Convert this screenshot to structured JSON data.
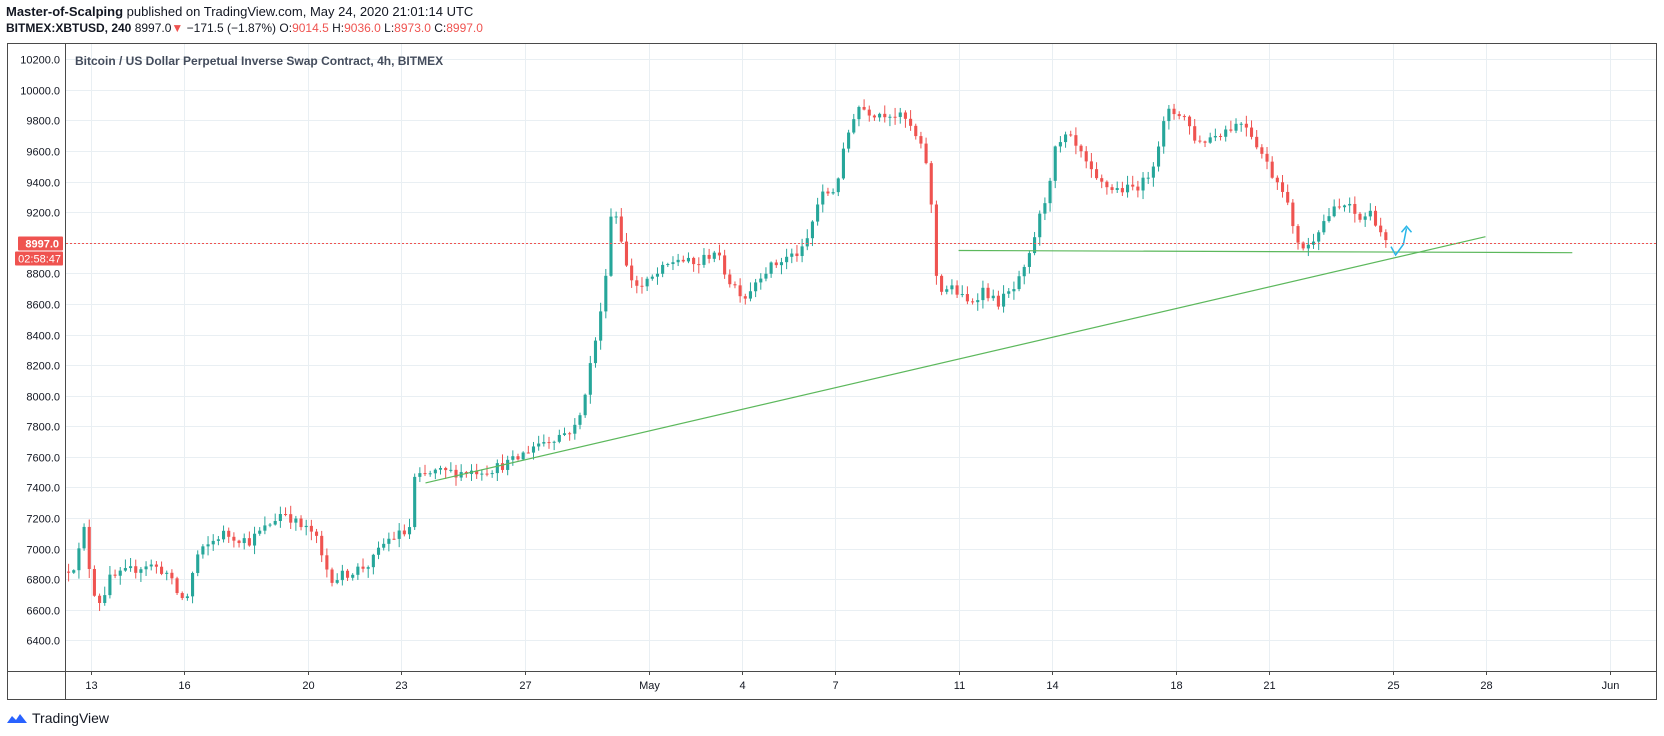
{
  "header": {
    "author": "Master-of-Scalping",
    "published_text": "published on TradingView.com, May 24, 2020 21:01:14 UTC",
    "symbol": "BITMEX:XBTUSD, 240",
    "last": "8997.0",
    "change": "−171.5 (−1.87%)",
    "open_label": "O:",
    "open": "9014.5",
    "high_label": "H:",
    "high": "9036.0",
    "low_label": "L:",
    "low": "8973.0",
    "close_label": "C:",
    "close": "8997.0"
  },
  "footer": {
    "brand": "TradingView"
  },
  "colors": {
    "up": "#26a69a",
    "down": "#ef5350",
    "trend": "#5cb85c",
    "projection": "#29b6e8",
    "grid": "#e9eff3",
    "axis": "#4a4a4a"
  },
  "chart_data": {
    "type": "candlestick",
    "title": "Bitcoin / US Dollar Perpetual Inverse Swap Contract, 4h, BITMEX",
    "timeframe": "4h",
    "ylim": [
      6200,
      10300
    ],
    "y_ticks": [
      "6400.0",
      "6600.0",
      "6800.0",
      "7000.0",
      "7200.0",
      "7400.0",
      "7600.0",
      "7800.0",
      "8000.0",
      "8200.0",
      "8400.0",
      "8600.0",
      "8800.0",
      "9000.0",
      "9200.0",
      "9400.0",
      "9600.0",
      "9800.0",
      "10000.0",
      "10200.0"
    ],
    "y_tick_values": [
      6400,
      6600,
      6800,
      7000,
      7200,
      7400,
      7600,
      7800,
      8000,
      8200,
      8400,
      8600,
      8800,
      9000,
      9200,
      9400,
      9600,
      9800,
      10000,
      10200
    ],
    "x_ticks": [
      {
        "label": "13",
        "day": 13
      },
      {
        "label": "16",
        "day": 16
      },
      {
        "label": "20",
        "day": 20
      },
      {
        "label": "23",
        "day": 23
      },
      {
        "label": "27",
        "day": 27
      },
      {
        "label": "May",
        "day": 31
      },
      {
        "label": "4",
        "day": 34
      },
      {
        "label": "7",
        "day": 37
      },
      {
        "label": "11",
        "day": 41
      },
      {
        "label": "14",
        "day": 44
      },
      {
        "label": "18",
        "day": 48
      },
      {
        "label": "21",
        "day": 51
      },
      {
        "label": "25",
        "day": 55
      },
      {
        "label": "28",
        "day": 58
      },
      {
        "label": "Jun",
        "day": 62
      }
    ],
    "x_range_days": [
      12.2,
      63.5
    ],
    "price_keypoints": [
      [
        12.2,
        6850
      ],
      [
        12.6,
        6900
      ],
      [
        12.9,
        7150
      ],
      [
        13.1,
        6750
      ],
      [
        13.4,
        6650
      ],
      [
        13.7,
        6800
      ],
      [
        14.3,
        6850
      ],
      [
        14.9,
        6900
      ],
      [
        15.5,
        6850
      ],
      [
        15.9,
        6700
      ],
      [
        16.15,
        6650
      ],
      [
        16.5,
        6950
      ],
      [
        17.3,
        7100
      ],
      [
        18.2,
        7050
      ],
      [
        18.8,
        7150
      ],
      [
        19.3,
        7250
      ],
      [
        19.8,
        7150
      ],
      [
        20.3,
        7100
      ],
      [
        20.6,
        6900
      ],
      [
        20.9,
        6800
      ],
      [
        21.5,
        6850
      ],
      [
        22.1,
        6900
      ],
      [
        22.6,
        7050
      ],
      [
        23.1,
        7100
      ],
      [
        23.35,
        7100
      ],
      [
        23.5,
        7450
      ],
      [
        24.2,
        7500
      ],
      [
        25.0,
        7500
      ],
      [
        26.0,
        7520
      ],
      [
        26.8,
        7580
      ],
      [
        27.4,
        7680
      ],
      [
        28.3,
        7750
      ],
      [
        28.8,
        7800
      ],
      [
        29.2,
        8200
      ],
      [
        29.6,
        8600
      ],
      [
        29.9,
        9250
      ],
      [
        30.1,
        9150
      ],
      [
        30.4,
        8800
      ],
      [
        30.8,
        8700
      ],
      [
        31.4,
        8800
      ],
      [
        32.0,
        8900
      ],
      [
        32.6,
        8850
      ],
      [
        33.2,
        8950
      ],
      [
        33.7,
        8750
      ],
      [
        34.2,
        8650
      ],
      [
        34.7,
        8800
      ],
      [
        35.5,
        8900
      ],
      [
        36.1,
        8950
      ],
      [
        36.6,
        9300
      ],
      [
        37.1,
        9350
      ],
      [
        37.5,
        9700
      ],
      [
        37.8,
        9900
      ],
      [
        38.3,
        9850
      ],
      [
        38.9,
        9850
      ],
      [
        39.4,
        9800
      ],
      [
        39.8,
        9650
      ],
      [
        40.1,
        9500
      ],
      [
        40.4,
        8700
      ],
      [
        40.9,
        8700
      ],
      [
        41.4,
        8600
      ],
      [
        41.9,
        8700
      ],
      [
        42.3,
        8600
      ],
      [
        42.9,
        8700
      ],
      [
        43.3,
        8850
      ],
      [
        43.6,
        9100
      ],
      [
        43.9,
        9300
      ],
      [
        44.2,
        9600
      ],
      [
        44.6,
        9700
      ],
      [
        45.1,
        9550
      ],
      [
        45.5,
        9400
      ],
      [
        46.1,
        9350
      ],
      [
        46.6,
        9350
      ],
      [
        47.1,
        9400
      ],
      [
        47.4,
        9550
      ],
      [
        47.8,
        9850
      ],
      [
        48.3,
        9850
      ],
      [
        48.8,
        9650
      ],
      [
        49.3,
        9700
      ],
      [
        49.8,
        9750
      ],
      [
        50.3,
        9800
      ],
      [
        50.7,
        9650
      ],
      [
        51.2,
        9450
      ],
      [
        51.6,
        9350
      ],
      [
        51.9,
        9050
      ],
      [
        52.3,
        8950
      ],
      [
        52.7,
        9100
      ],
      [
        53.1,
        9200
      ],
      [
        53.6,
        9250
      ],
      [
        54.0,
        9150
      ],
      [
        54.4,
        9200
      ],
      [
        54.65,
        9100
      ],
      [
        54.85,
        8997
      ]
    ],
    "last_price": 8997.0,
    "last_price_label": "8997.0",
    "countdown": "02:58:47",
    "annotations": [
      {
        "type": "trendline",
        "name": "ascending-support",
        "points": [
          [
            23.8,
            7430
          ],
          [
            58.0,
            9040
          ]
        ]
      },
      {
        "type": "trendline",
        "name": "horizontal-support",
        "points": [
          [
            41.0,
            8950
          ],
          [
            60.8,
            8935
          ]
        ]
      },
      {
        "type": "projection",
        "name": "bounce-projection",
        "points": [
          [
            54.95,
            8975
          ],
          [
            55.1,
            8920
          ],
          [
            55.35,
            8990
          ],
          [
            55.45,
            9095
          ]
        ]
      }
    ]
  }
}
